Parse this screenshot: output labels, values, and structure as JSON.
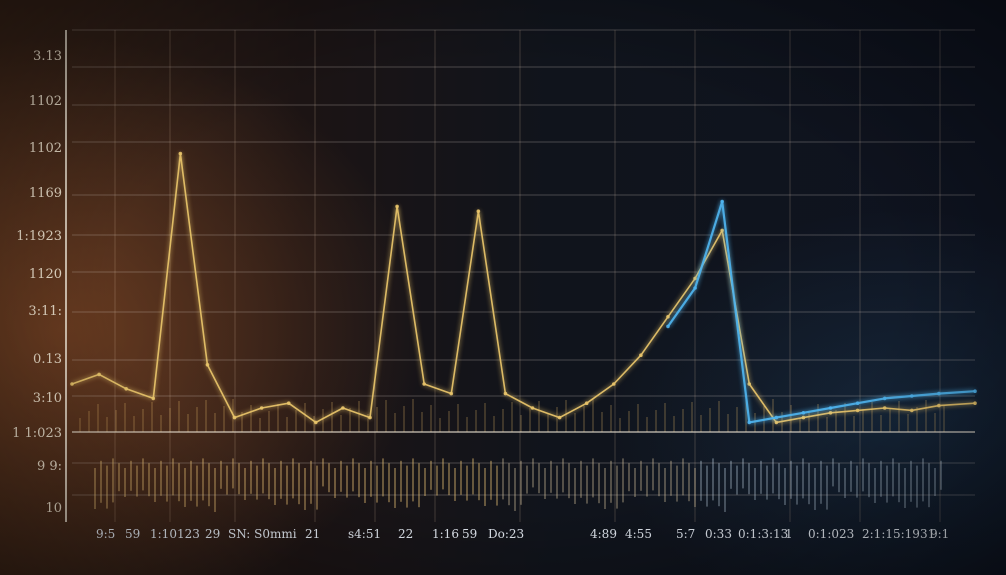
{
  "chart_data": {
    "type": "line",
    "title": "",
    "xlabel": "",
    "ylabel": "",
    "grid": true,
    "yticks": [
      "3.13",
      "1102",
      "1102",
      "1169",
      "1:1923",
      "1120",
      "3:11:",
      "0.13",
      "3:10",
      "1 1:023",
      "9 9:",
      "10"
    ],
    "xticks": [
      "9:5",
      "59",
      "1:10123",
      "29",
      "SN: S0mmi",
      "21",
      "s4:51",
      "22",
      "1:16",
      "59",
      "Do:23",
      "4:89",
      "4:55",
      "5:7",
      "0:33",
      "0:1:3:13",
      "1",
      "0:1:023",
      "2:1:15:1931",
      "9:1"
    ],
    "x": [
      0,
      3,
      6,
      9,
      12,
      15,
      18,
      21,
      24,
      27,
      30,
      33,
      36,
      39,
      42,
      45,
      48,
      51,
      54,
      57,
      60,
      63,
      66,
      69,
      72,
      75,
      78,
      81,
      84,
      87,
      90,
      93,
      96,
      100
    ],
    "series": [
      {
        "color": "#e8c46a",
        "values": [
          1.0,
          1.2,
          0.9,
          0.7,
          5.8,
          1.4,
          0.3,
          0.5,
          0.6,
          0.2,
          0.5,
          0.3,
          4.7,
          1.0,
          0.8,
          4.6,
          0.8,
          0.5,
          0.3,
          0.6,
          1.0,
          1.6,
          2.4,
          3.2,
          4.2,
          1.0,
          0.2,
          0.3,
          0.4,
          0.45,
          0.5,
          0.45,
          0.55,
          0.6
        ]
      },
      {
        "color": "#4fb4ee",
        "values": [
          null,
          null,
          null,
          null,
          null,
          null,
          null,
          null,
          null,
          null,
          null,
          null,
          null,
          null,
          null,
          null,
          null,
          null,
          null,
          null,
          null,
          null,
          2.2,
          3.0,
          4.8,
          0.2,
          0.3,
          0.4,
          0.5,
          0.6,
          0.7,
          0.75,
          0.8,
          0.85
        ]
      }
    ]
  }
}
